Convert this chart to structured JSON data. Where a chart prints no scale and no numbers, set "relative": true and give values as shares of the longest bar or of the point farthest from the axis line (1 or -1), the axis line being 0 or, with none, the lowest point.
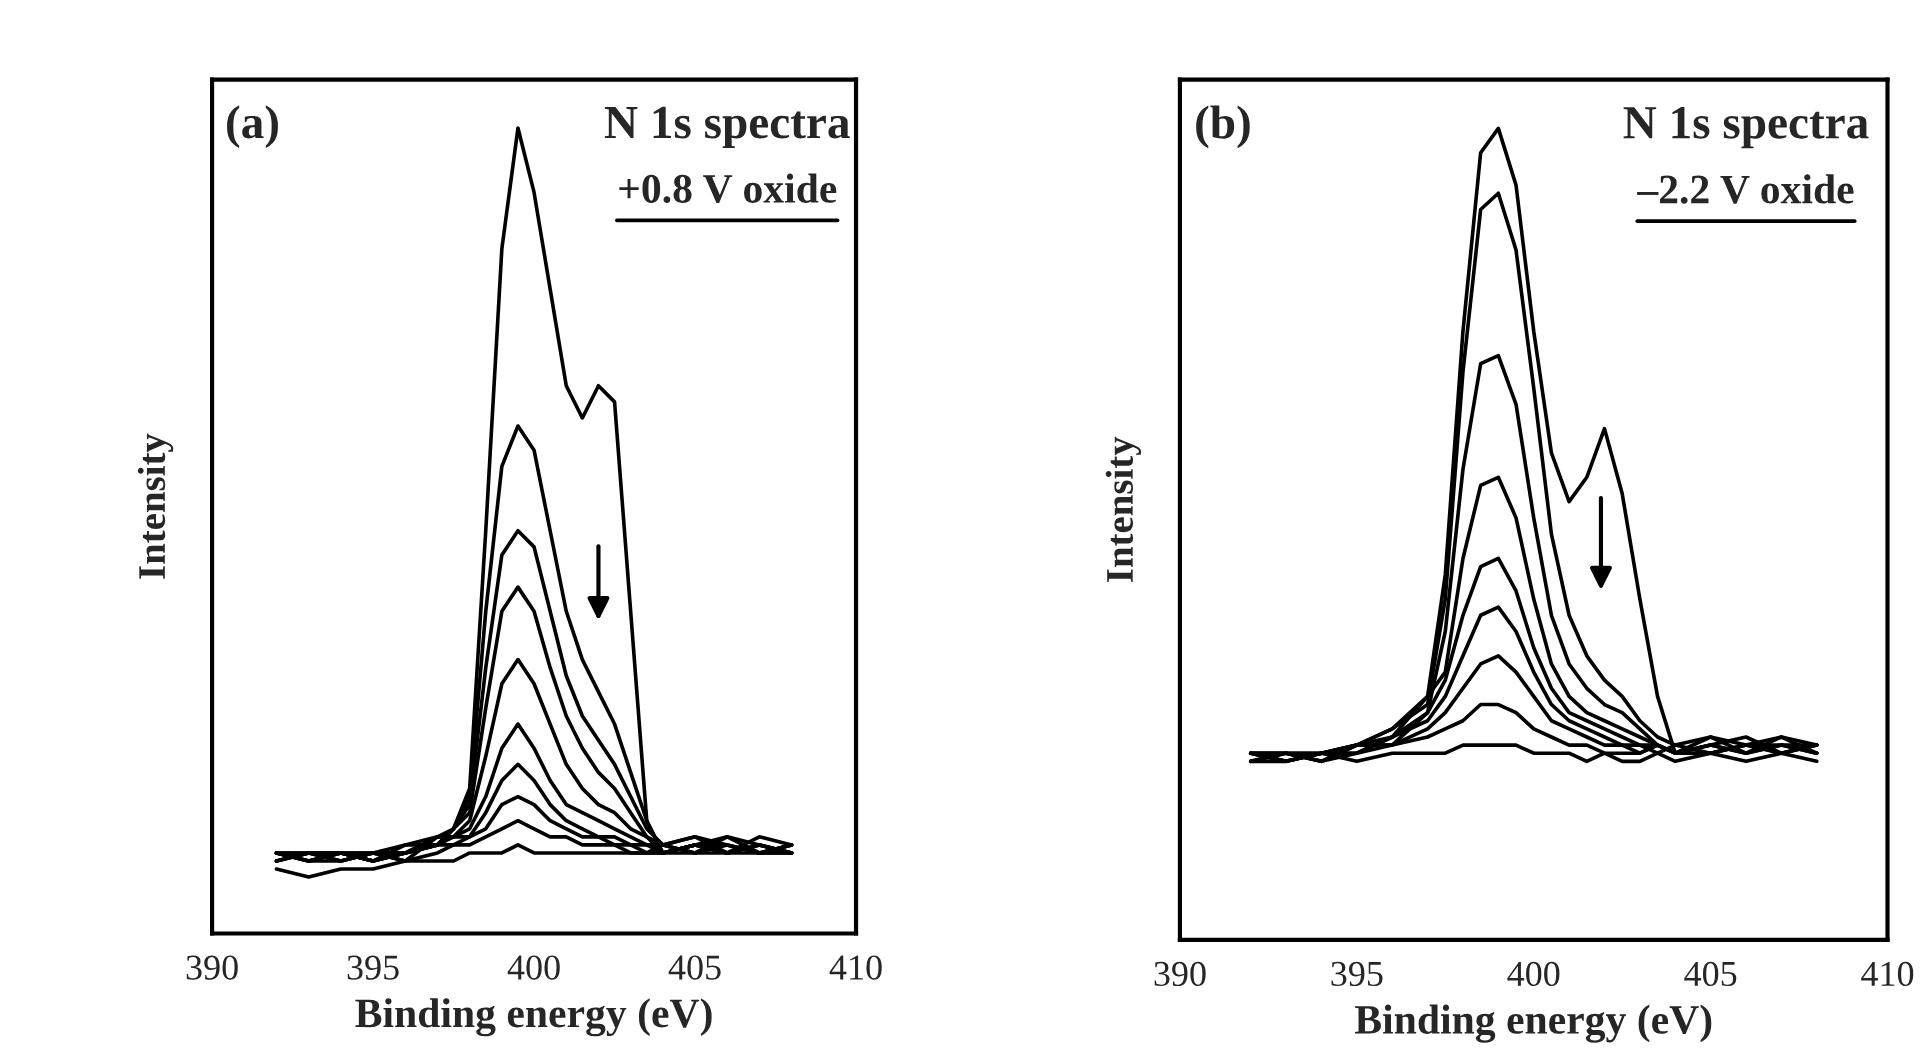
{
  "chart_data": [
    {
      "type": "line",
      "relative": true,
      "xlabel": "Binding energy (eV)",
      "ylabel": "Intensity",
      "tick_labels": "x",
      "xlim": [
        390,
        410
      ],
      "xticks": [
        390,
        395,
        400,
        405,
        410
      ],
      "annotations": [
        "(a)",
        "N 1s spectra",
        "+0.8 V oxide"
      ],
      "x": [
        392,
        393,
        394,
        395,
        396,
        397,
        397.5,
        398,
        398.5,
        399,
        399.5,
        400,
        400.5,
        401,
        401.5,
        402,
        402.5,
        403,
        403.5,
        404,
        405,
        406,
        407,
        408
      ],
      "series": [
        {
          "color": "#000000",
          "values": [
            0.1,
            0.09,
            0.1,
            0.09,
            0.1,
            0.11,
            0.13,
            0.18,
            0.5,
            0.85,
            1.0,
            0.92,
            0.8,
            0.68,
            0.64,
            0.68,
            0.66,
            0.4,
            0.14,
            0.1,
            0.11,
            0.1,
            0.11,
            0.1
          ]
        },
        {
          "color": "#000000",
          "values": [
            0.1,
            0.1,
            0.09,
            0.1,
            0.1,
            0.11,
            0.13,
            0.17,
            0.4,
            0.58,
            0.63,
            0.6,
            0.5,
            0.4,
            0.34,
            0.3,
            0.26,
            0.2,
            0.14,
            0.1,
            0.11,
            0.12,
            0.1,
            0.11
          ]
        },
        {
          "color": "#000000",
          "values": [
            0.09,
            0.1,
            0.1,
            0.09,
            0.11,
            0.11,
            0.13,
            0.16,
            0.33,
            0.47,
            0.5,
            0.48,
            0.4,
            0.32,
            0.27,
            0.24,
            0.21,
            0.17,
            0.13,
            0.11,
            0.12,
            0.1,
            0.11,
            0.1
          ]
        },
        {
          "color": "#000000",
          "values": [
            0.1,
            0.09,
            0.1,
            0.1,
            0.09,
            0.12,
            0.13,
            0.15,
            0.28,
            0.4,
            0.43,
            0.4,
            0.33,
            0.27,
            0.23,
            0.2,
            0.18,
            0.15,
            0.12,
            0.1,
            0.11,
            0.11,
            0.1,
            0.11
          ]
        },
        {
          "color": "#000000",
          "values": [
            0.09,
            0.1,
            0.1,
            0.09,
            0.1,
            0.12,
            0.12,
            0.14,
            0.22,
            0.31,
            0.34,
            0.31,
            0.26,
            0.21,
            0.18,
            0.16,
            0.15,
            0.13,
            0.12,
            0.11,
            0.1,
            0.12,
            0.11,
            0.1
          ]
        },
        {
          "color": "#000000",
          "values": [
            0.1,
            0.09,
            0.09,
            0.1,
            0.1,
            0.11,
            0.12,
            0.13,
            0.17,
            0.23,
            0.26,
            0.23,
            0.19,
            0.16,
            0.15,
            0.14,
            0.13,
            0.12,
            0.11,
            0.1,
            0.11,
            0.1,
            0.12,
            0.11
          ]
        },
        {
          "color": "#000000",
          "values": [
            0.1,
            0.1,
            0.09,
            0.1,
            0.11,
            0.12,
            0.12,
            0.12,
            0.15,
            0.19,
            0.21,
            0.19,
            0.16,
            0.14,
            0.13,
            0.12,
            0.12,
            0.11,
            0.11,
            0.11,
            0.12,
            0.11,
            0.1,
            0.1
          ]
        },
        {
          "color": "#000000",
          "values": [
            0.09,
            0.1,
            0.1,
            0.09,
            0.1,
            0.11,
            0.11,
            0.12,
            0.13,
            0.16,
            0.17,
            0.16,
            0.14,
            0.13,
            0.12,
            0.12,
            0.11,
            0.11,
            0.1,
            0.1,
            0.11,
            0.1,
            0.11,
            0.1
          ]
        },
        {
          "color": "#000000",
          "values": [
            0.1,
            0.09,
            0.1,
            0.1,
            0.09,
            0.1,
            0.11,
            0.11,
            0.12,
            0.13,
            0.14,
            0.13,
            0.12,
            0.12,
            0.11,
            0.11,
            0.11,
            0.1,
            0.1,
            0.11,
            0.1,
            0.11,
            0.1,
            0.11
          ]
        },
        {
          "color": "#000000",
          "values": [
            0.08,
            0.07,
            0.08,
            0.08,
            0.09,
            0.09,
            0.09,
            0.1,
            0.1,
            0.1,
            0.11,
            0.1,
            0.1,
            0.1,
            0.1,
            0.1,
            0.1,
            0.1,
            0.1,
            0.1,
            0.1,
            0.1,
            0.1,
            0.1
          ]
        }
      ]
    },
    {
      "type": "line",
      "relative": true,
      "xlabel": "Binding energy (eV)",
      "ylabel": "Intensity",
      "tick_labels": "x",
      "xlim": [
        390,
        410
      ],
      "xticks": [
        390,
        395,
        400,
        405,
        410
      ],
      "annotations": [
        "(b)",
        "N 1s spectra",
        "–2.2 V oxide"
      ],
      "x": [
        392,
        393,
        394,
        395,
        396,
        397,
        397.5,
        398,
        398.5,
        399,
        399.5,
        400,
        400.5,
        401,
        401.5,
        402,
        402.5,
        403,
        403.5,
        404,
        405,
        406,
        407,
        408
      ],
      "series": [
        {
          "color": "#000000",
          "values": [
            0.23,
            0.22,
            0.23,
            0.24,
            0.26,
            0.3,
            0.45,
            0.75,
            0.97,
            1.0,
            0.93,
            0.75,
            0.6,
            0.54,
            0.57,
            0.63,
            0.55,
            0.42,
            0.3,
            0.23,
            0.25,
            0.24,
            0.25,
            0.24
          ]
        },
        {
          "color": "#000000",
          "values": [
            0.23,
            0.23,
            0.22,
            0.24,
            0.26,
            0.29,
            0.42,
            0.7,
            0.9,
            0.92,
            0.85,
            0.68,
            0.5,
            0.4,
            0.35,
            0.32,
            0.3,
            0.27,
            0.25,
            0.24,
            0.25,
            0.23,
            0.24,
            0.24
          ]
        },
        {
          "color": "#000000",
          "values": [
            0.22,
            0.23,
            0.23,
            0.24,
            0.25,
            0.28,
            0.38,
            0.58,
            0.71,
            0.72,
            0.66,
            0.52,
            0.4,
            0.34,
            0.31,
            0.29,
            0.28,
            0.26,
            0.24,
            0.23,
            0.24,
            0.25,
            0.23,
            0.24
          ]
        },
        {
          "color": "#000000",
          "values": [
            0.23,
            0.22,
            0.23,
            0.23,
            0.25,
            0.3,
            0.33,
            0.47,
            0.56,
            0.57,
            0.52,
            0.42,
            0.34,
            0.3,
            0.28,
            0.27,
            0.26,
            0.25,
            0.24,
            0.23,
            0.24,
            0.23,
            0.25,
            0.23
          ]
        },
        {
          "color": "#000000",
          "values": [
            0.23,
            0.23,
            0.22,
            0.24,
            0.24,
            0.28,
            0.32,
            0.4,
            0.46,
            0.47,
            0.43,
            0.36,
            0.31,
            0.28,
            0.27,
            0.26,
            0.25,
            0.24,
            0.24,
            0.23,
            0.23,
            0.24,
            0.23,
            0.24
          ]
        },
        {
          "color": "#000000",
          "values": [
            0.22,
            0.23,
            0.23,
            0.23,
            0.25,
            0.27,
            0.3,
            0.35,
            0.4,
            0.41,
            0.38,
            0.33,
            0.29,
            0.27,
            0.26,
            0.25,
            0.24,
            0.24,
            0.23,
            0.24,
            0.23,
            0.24,
            0.24,
            0.23
          ]
        },
        {
          "color": "#000000",
          "values": [
            0.23,
            0.22,
            0.23,
            0.24,
            0.24,
            0.26,
            0.28,
            0.31,
            0.34,
            0.35,
            0.33,
            0.3,
            0.27,
            0.26,
            0.25,
            0.24,
            0.24,
            0.23,
            0.24,
            0.23,
            0.24,
            0.23,
            0.24,
            0.23
          ]
        },
        {
          "color": "#000000",
          "values": [
            0.23,
            0.23,
            0.22,
            0.23,
            0.24,
            0.25,
            0.26,
            0.27,
            0.29,
            0.29,
            0.28,
            0.26,
            0.25,
            0.24,
            0.24,
            0.23,
            0.23,
            0.23,
            0.24,
            0.23,
            0.23,
            0.24,
            0.23,
            0.24
          ]
        },
        {
          "color": "#000000",
          "values": [
            0.22,
            0.22,
            0.23,
            0.22,
            0.23,
            0.23,
            0.23,
            0.24,
            0.24,
            0.24,
            0.24,
            0.23,
            0.23,
            0.23,
            0.22,
            0.23,
            0.22,
            0.22,
            0.23,
            0.22,
            0.23,
            0.22,
            0.23,
            0.22
          ]
        }
      ]
    }
  ]
}
